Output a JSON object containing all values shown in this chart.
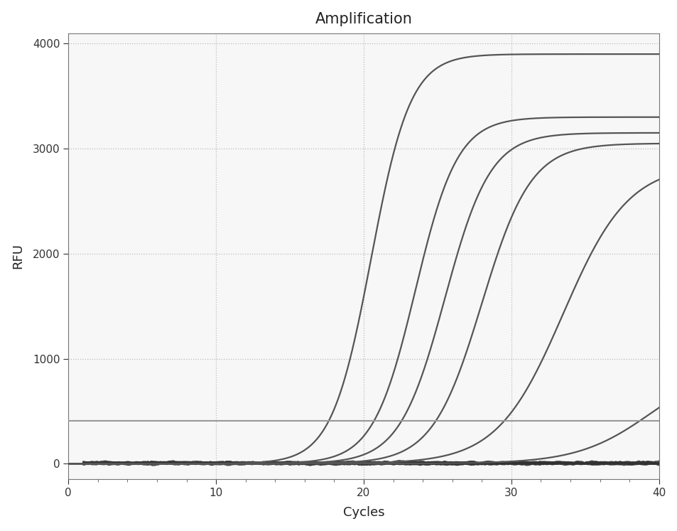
{
  "title": "Amplification",
  "xlabel": "Cycles",
  "ylabel": "RFU",
  "xlim": [
    0,
    40
  ],
  "ylim": [
    -150,
    4100
  ],
  "xticks": [
    0,
    10,
    20,
    30,
    40
  ],
  "xtick_labels": [
    "0",
    "10",
    "20",
    "30",
    "40"
  ],
  "yticks": [
    0,
    1000,
    2000,
    3000,
    4000
  ],
  "threshold_y": 410,
  "threshold_color": "#999999",
  "threshold_lw": 1.5,
  "curve_color": "#555555",
  "curve_lw": 1.6,
  "background_color": "#ffffff",
  "plot_bg_color": "#f7f7f7",
  "grid_color": "#bbbbbb",
  "curves": [
    {
      "L": 3900,
      "k": 0.75,
      "x0": 20.5
    },
    {
      "L": 3300,
      "k": 0.7,
      "x0": 23.5
    },
    {
      "L": 3150,
      "k": 0.65,
      "x0": 25.5
    },
    {
      "L": 3050,
      "k": 0.6,
      "x0": 28.0
    },
    {
      "L": 2850,
      "k": 0.45,
      "x0": 33.5
    },
    {
      "L": 970,
      "k": 0.4,
      "x0": 39.5
    }
  ],
  "noise_count": 20,
  "noise_seed": 42,
  "noise_lw": 1.2,
  "noise_color": "#333333",
  "title_fontsize": 15,
  "label_fontsize": 13,
  "tick_fontsize": 11
}
